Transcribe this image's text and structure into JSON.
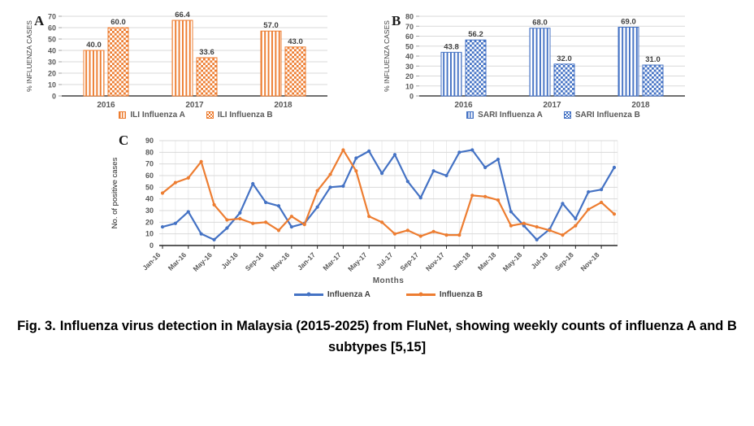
{
  "figure": {
    "caption_label": "Fig. 3.",
    "caption_text": "Influenza virus detection in Malaysia (2015-2025) from FluNet, showing weekly counts of influenza A and B subtypes [5,15]"
  },
  "panels": [
    {
      "label": "A"
    },
    {
      "label": "B"
    },
    {
      "label": "C"
    }
  ],
  "colors": {
    "orange": "#ED7D31",
    "blue": "#4472C4",
    "gridline": "#D9D9D9",
    "axis": "#262626",
    "tick_text": "#595959",
    "data_label_text": "#404040"
  },
  "chart_data": [
    {
      "id": "chartA",
      "panel": "A",
      "type": "bar",
      "ylabel": "% INFLUENZA CASES",
      "ylim": [
        0,
        70
      ],
      "ystep": 10,
      "grid": true,
      "legend_position": "bottom",
      "categories": [
        "2016",
        "2017",
        "2018"
      ],
      "series": [
        {
          "name": "ILI Influenza A",
          "color": "#ED7D31",
          "fill_pattern": "vertical-stripes",
          "values": [
            40.0,
            66.4,
            57.0
          ]
        },
        {
          "name": "ILI Influenza B",
          "color": "#ED7D31",
          "fill_pattern": "checker",
          "values": [
            60.0,
            33.6,
            43.0
          ]
        }
      ],
      "data_label_decimals": 1
    },
    {
      "id": "chartB",
      "panel": "B",
      "type": "bar",
      "ylabel": "% INFLUENZA CASES",
      "ylim": [
        0,
        80
      ],
      "ystep": 10,
      "grid": true,
      "legend_position": "bottom",
      "categories": [
        "2016",
        "2017",
        "2018"
      ],
      "series": [
        {
          "name": "SARI Influenza A",
          "color": "#4472C4",
          "fill_pattern": "vertical-stripes",
          "values": [
            43.8,
            68.0,
            69.0
          ]
        },
        {
          "name": "SARI Influenza B",
          "color": "#4472C4",
          "fill_pattern": "checker",
          "values": [
            56.2,
            32.0,
            31.0
          ]
        }
      ],
      "data_label_decimals": 1
    },
    {
      "id": "chartC",
      "panel": "C",
      "type": "line",
      "xlabel": "Months",
      "ylabel": "No. of positive cases",
      "ylim": [
        0,
        90
      ],
      "ystep": 10,
      "grid": true,
      "legend_position": "bottom",
      "x": [
        "Jan-16",
        "Feb-16",
        "Mar-16",
        "Apr-16",
        "May-16",
        "Jun-16",
        "Jul-16",
        "Aug-16",
        "Sep-16",
        "Oct-16",
        "Nov-16",
        "Dec-16",
        "Jan-17",
        "Feb-17",
        "Mar-17",
        "Apr-17",
        "May-17",
        "Jun-17",
        "Jul-17",
        "Aug-17",
        "Sep-17",
        "Oct-17",
        "Nov-17",
        "Dec-17",
        "Jan-18",
        "Feb-18",
        "Mar-18",
        "Apr-18",
        "May-18",
        "Jun-18",
        "Jul-18",
        "Aug-18",
        "Sep-18",
        "Oct-18",
        "Nov-18",
        "Dec-18"
      ],
      "x_ticks_shown": [
        "Jan-16",
        "Mar-16",
        "May-16",
        "Jul-16",
        "Sep-16",
        "Nov-16",
        "Jan-17",
        "Mar-17",
        "May-17",
        "Jul-17",
        "Sep-17",
        "Nov-17",
        "Jan-18",
        "Mar-18",
        "May-18",
        "Jul-18",
        "Sep-18",
        "Nov-18"
      ],
      "series": [
        {
          "name": "Influenza A",
          "color": "#4472C4",
          "values": [
            16,
            19,
            29,
            10,
            5,
            15,
            28,
            53,
            37,
            34,
            16,
            19,
            33,
            50,
            51,
            75,
            81,
            62,
            78,
            55,
            41,
            64,
            60,
            80,
            82,
            67,
            74,
            29,
            17,
            5,
            14,
            36,
            23,
            46,
            48,
            67
          ]
        },
        {
          "name": "Influenza B",
          "color": "#ED7D31",
          "values": [
            45,
            54,
            58,
            72,
            35,
            22,
            23,
            19,
            20,
            13,
            25,
            18,
            47,
            61,
            82,
            64,
            25,
            20,
            10,
            13,
            8,
            12,
            9,
            9,
            43,
            42,
            39,
            17,
            19,
            16,
            13,
            9,
            17,
            31,
            37,
            27
          ]
        }
      ]
    }
  ]
}
